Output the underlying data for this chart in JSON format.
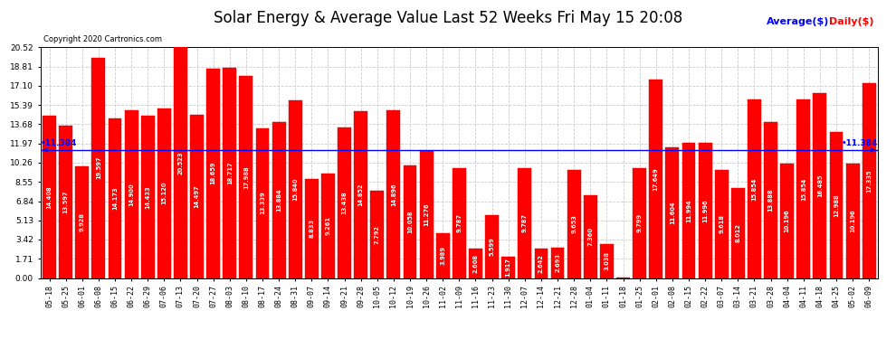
{
  "title": "Solar Energy & Average Value Last 52 Weeks Fri May 15 20:08",
  "copyright": "Copyright 2020 Cartronics.com",
  "legend_avg": "Average($)",
  "legend_daily": "Daily($)",
  "average_line": 11.384,
  "categories": [
    "05-18",
    "05-25",
    "06-01",
    "06-08",
    "06-15",
    "06-22",
    "06-29",
    "07-06",
    "07-13",
    "07-20",
    "07-27",
    "08-03",
    "08-10",
    "08-17",
    "08-24",
    "08-31",
    "09-07",
    "09-14",
    "09-21",
    "09-28",
    "10-05",
    "10-12",
    "10-19",
    "10-26",
    "11-02",
    "11-09",
    "11-16",
    "11-23",
    "11-30",
    "12-07",
    "12-14",
    "12-21",
    "12-28",
    "01-04",
    "01-11",
    "01-18",
    "01-25",
    "02-01",
    "02-08",
    "02-15",
    "02-22",
    "03-07",
    "03-14",
    "03-21",
    "03-28",
    "04-04",
    "04-11",
    "04-18",
    "04-25",
    "05-02",
    "06-09"
  ],
  "values": [
    14.408,
    13.597,
    9.928,
    19.597,
    14.173,
    14.9,
    14.433,
    15.12,
    20.523,
    14.497,
    18.659,
    18.717,
    17.988,
    13.339,
    13.884,
    15.84,
    8.833,
    9.261,
    13.438,
    14.852,
    7.792,
    14.896,
    10.058,
    11.276,
    3.989,
    9.787,
    2.608,
    5.599,
    1.917,
    9.787,
    2.642,
    2.693,
    9.653,
    7.36,
    3.038,
    0.008,
    9.799,
    17.649,
    11.604,
    11.994,
    11.996,
    9.618,
    8.012,
    15.854,
    13.888,
    10.196,
    15.854,
    16.485,
    12.988,
    10.196,
    17.335
  ],
  "bar_color": "#ff0000",
  "bar_edge_color": "#cc0000",
  "avg_line_color": "#0000ff",
  "avg_label_color": "#0000ff",
  "daily_label_color": "#ff0000",
  "background_color": "#ffffff",
  "grid_color": "#cccccc",
  "title_fontsize": 12,
  "tick_fontsize": 6.0,
  "value_fontsize": 4.8,
  "ytick_values": [
    0.0,
    1.71,
    3.42,
    5.13,
    6.84,
    8.55,
    10.26,
    11.97,
    13.68,
    15.39,
    17.1,
    18.81,
    20.52
  ],
  "ylim": [
    0,
    20.52
  ]
}
